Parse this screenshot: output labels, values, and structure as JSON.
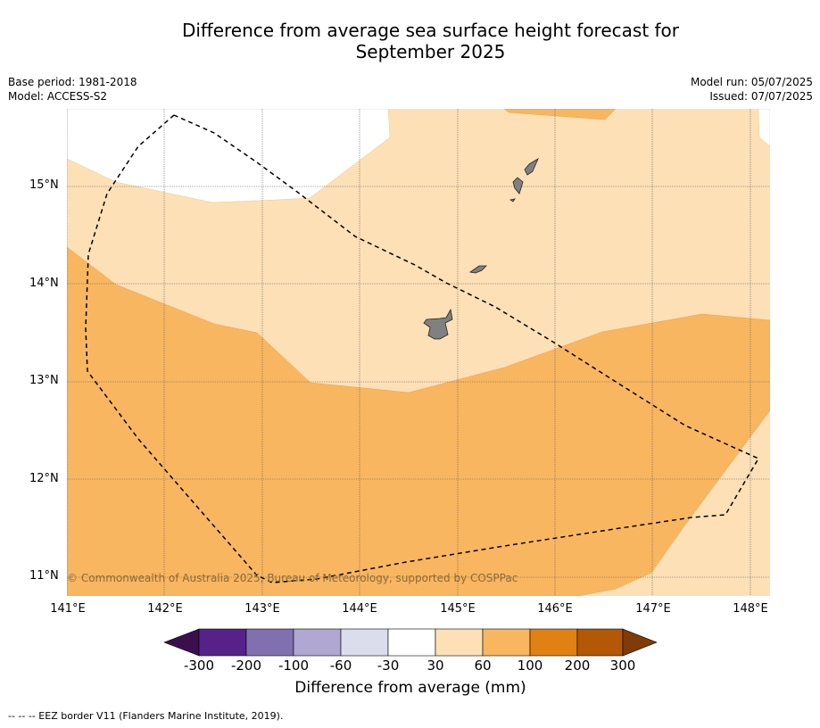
{
  "title_line1": "Difference from average sea surface height forecast for",
  "title_line2": "September 2025",
  "meta_left": {
    "base_period": "Base period: 1981-2018",
    "model": "Model: ACCESS-S2"
  },
  "meta_right": {
    "model_run": "Model run: 05/07/2025",
    "issued": "Issued: 07/07/2025"
  },
  "latitude_labels": [
    "15°N",
    "14°N",
    "13°N",
    "12°N",
    "11°N"
  ],
  "longitude_labels": [
    "141°E",
    "142°E",
    "143°E",
    "144°E",
    "145°E",
    "146°E",
    "147°E",
    "148°E"
  ],
  "copyright": "© Commonwealth of Australia 2025, Bureau of Meteorology, supported by COSPPac",
  "colorbar": {
    "ticks": [
      "-300",
      "-200",
      "-100",
      "-60",
      "-30",
      "30",
      "60",
      "100",
      "200",
      "300"
    ],
    "colors": [
      "#3b0f4e",
      "#57218a",
      "#8070b0",
      "#b0a7d2",
      "#dbdcec",
      "#ffffff",
      "#fde0b6",
      "#f9b660",
      "#e08113",
      "#b35806",
      "#7f3b08"
    ],
    "label": "Difference from average (mm)"
  },
  "footer": "-- -- -- EEZ border V11 (Flanders Marine Institute, 2019)."
}
